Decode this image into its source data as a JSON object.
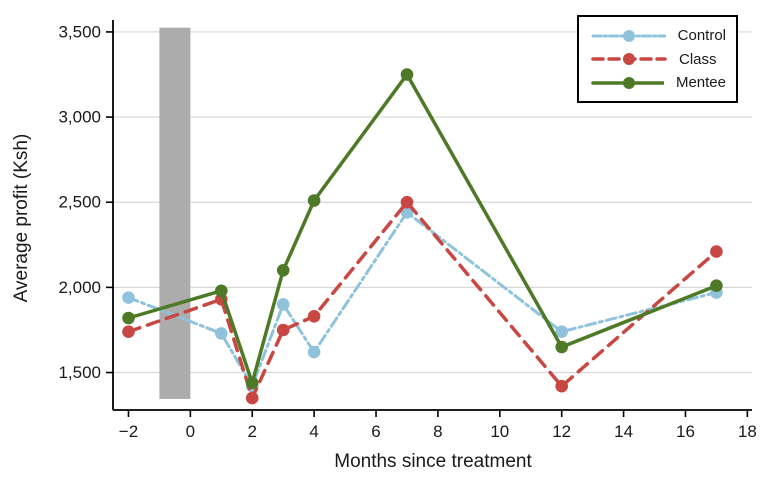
{
  "figure": {
    "x_axis_title": "Months since treatment",
    "y_axis_title": "Average profit (Ksh)"
  },
  "chart_data": {
    "type": "line",
    "title": "",
    "xlabel": "Months since treatment",
    "ylabel": "Average profit (Ksh)",
    "x": [
      -2,
      1,
      2,
      3,
      4,
      7,
      12,
      17
    ],
    "series": [
      {
        "name": "Control",
        "color": "#8FC3DC",
        "line_style": "dash-dot",
        "line_width": 3,
        "marker": "circle",
        "values": [
          1940,
          1730,
          1420,
          1900,
          1620,
          2440,
          1740,
          1970
        ]
      },
      {
        "name": "Class",
        "color": "#C94742",
        "line_style": "dashed",
        "line_width": 3.5,
        "marker": "circle",
        "values": [
          1740,
          1930,
          1350,
          1750,
          1830,
          2500,
          1420,
          2210
        ]
      },
      {
        "name": "Mentee",
        "color": "#4E7A27",
        "line_style": "solid",
        "line_width": 3.5,
        "marker": "circle",
        "values": [
          1820,
          1980,
          1440,
          2100,
          2510,
          3250,
          1650,
          2010
        ]
      }
    ],
    "xlim": [
      -2.5,
      18.15
    ],
    "ylim": [
      1280,
      3570
    ],
    "x_ticks": [
      -2,
      0,
      2,
      4,
      6,
      8,
      10,
      12,
      14,
      16,
      18
    ],
    "x_tick_labels": [
      "−2",
      "0",
      "2",
      "4",
      "6",
      "8",
      "10",
      "12",
      "14",
      "16",
      "18"
    ],
    "y_ticks": [
      1500,
      2000,
      2500,
      3000,
      3500
    ],
    "y_tick_labels": [
      "1,500",
      "2,000",
      "2,500",
      "3,000",
      "3,500"
    ],
    "grid": "horizontal-only",
    "gridline_color": "#D8D8D8",
    "axis_color": "#000000",
    "legend_position": "top-right",
    "shaded_region": {
      "x_from": -1,
      "x_to": 0,
      "y_from": 1345,
      "y_to": 3525,
      "color": "#ACACAC"
    }
  }
}
